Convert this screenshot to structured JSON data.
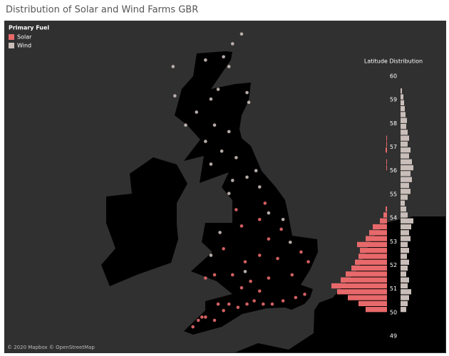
{
  "title": "Distribution of Solar and Wind Farms GBR",
  "attribution": "© 2020 Mapbox © OpenStreetMap",
  "chart_data": [
    {
      "type": "map",
      "legend_title": "Primary Fuel",
      "legend": "top-left",
      "series": [
        {
          "name": "Solar",
          "color": "#e8696b",
          "lon": [
            -5.2,
            -4.9,
            -4.5,
            -4.0,
            -3.5,
            -3.2,
            -2.7,
            -2.2,
            -1.8,
            -1.3,
            -0.8,
            -0.2,
            0.5,
            1.0,
            -1.5,
            -2.5,
            -2.0,
            -1.0,
            0.3,
            1.2,
            0.8,
            -0.5,
            -1.5,
            -2.3,
            -3.0,
            -4.0,
            -4.5,
            -1.0,
            -0.3,
            -1.5,
            -2.5,
            -2.8,
            -1.2,
            -3.5,
            -4.7,
            -3.8
          ],
          "lat": [
            50.2,
            50.4,
            50.5,
            50.4,
            50.7,
            50.9,
            50.8,
            50.9,
            51.0,
            50.9,
            50.9,
            51.0,
            51.1,
            51.2,
            51.3,
            51.4,
            51.6,
            51.7,
            51.8,
            52.2,
            52.5,
            52.3,
            52.4,
            52.2,
            51.8,
            51.8,
            51.7,
            52.9,
            53.2,
            53.5,
            53.3,
            53.8,
            54.0,
            52.6,
            50.5,
            50.9
          ]
        },
        {
          "name": "Wind",
          "color": "#c9beb9",
          "lon": [
            -3.0,
            -2.5,
            -3.5,
            -4.5,
            -3.2,
            -2.2,
            -3.8,
            -4.2,
            -5.0,
            -4.0,
            -3.2,
            -4.5,
            -3.6,
            -2.8,
            -4.2,
            -3.0,
            -2.2,
            -1.7,
            -1.5,
            -3.2,
            -1.0,
            -0.2,
            -3.7,
            -4.2,
            0.2,
            -2.3,
            -6.2,
            -5.6,
            -6.3,
            -2.1
          ],
          "lat": [
            58.9,
            59.2,
            58.5,
            58.4,
            58.2,
            57.4,
            57.5,
            57.2,
            56.8,
            56.4,
            56.2,
            55.9,
            55.6,
            55.4,
            55.2,
            54.7,
            54.8,
            55.0,
            54.5,
            54.3,
            53.7,
            53.5,
            53.1,
            52.4,
            52.8,
            51.9,
            57.3,
            56.4,
            58.2,
            57.1
          ]
        }
      ]
    },
    {
      "type": "histogram",
      "title": "Latitude Distribution",
      "bins": [
        50,
        50.25,
        50.5,
        50.75,
        51,
        51.25,
        51.5,
        51.75,
        52,
        52.25,
        52.5,
        52.75,
        53,
        53.25,
        53.5,
        53.75,
        54,
        54.25,
        54.5,
        54.75,
        55,
        55.25,
        55.5,
        55.75,
        56,
        56.25,
        56.5,
        56.75,
        57,
        57.25,
        57.5,
        57.75,
        58,
        58.25,
        58.5,
        58.75,
        59,
        59.25,
        59.5
      ],
      "series": [
        {
          "color": "#e8696b",
          "values": [
            30,
            40,
            55,
            70,
            78,
            65,
            58,
            50,
            45,
            40,
            38,
            42,
            30,
            25,
            20,
            10,
            5,
            2,
            0,
            0,
            0,
            0,
            0,
            0,
            1,
            1,
            0,
            2,
            1,
            1,
            0,
            0,
            0,
            0,
            0,
            0,
            0,
            0
          ]
        },
        {
          "color": "#c9beb9",
          "values": [
            8,
            10,
            12,
            15,
            10,
            12,
            8,
            10,
            12,
            9,
            12,
            10,
            14,
            12,
            15,
            18,
            10,
            8,
            6,
            10,
            14,
            12,
            16,
            14,
            18,
            16,
            12,
            14,
            10,
            12,
            10,
            8,
            9,
            7,
            6,
            5,
            4,
            2
          ]
        }
      ],
      "ylim": [
        49,
        60
      ],
      "yticks": [
        49,
        50,
        51,
        52,
        53,
        54,
        55,
        56,
        57,
        58,
        59,
        60
      ]
    }
  ]
}
